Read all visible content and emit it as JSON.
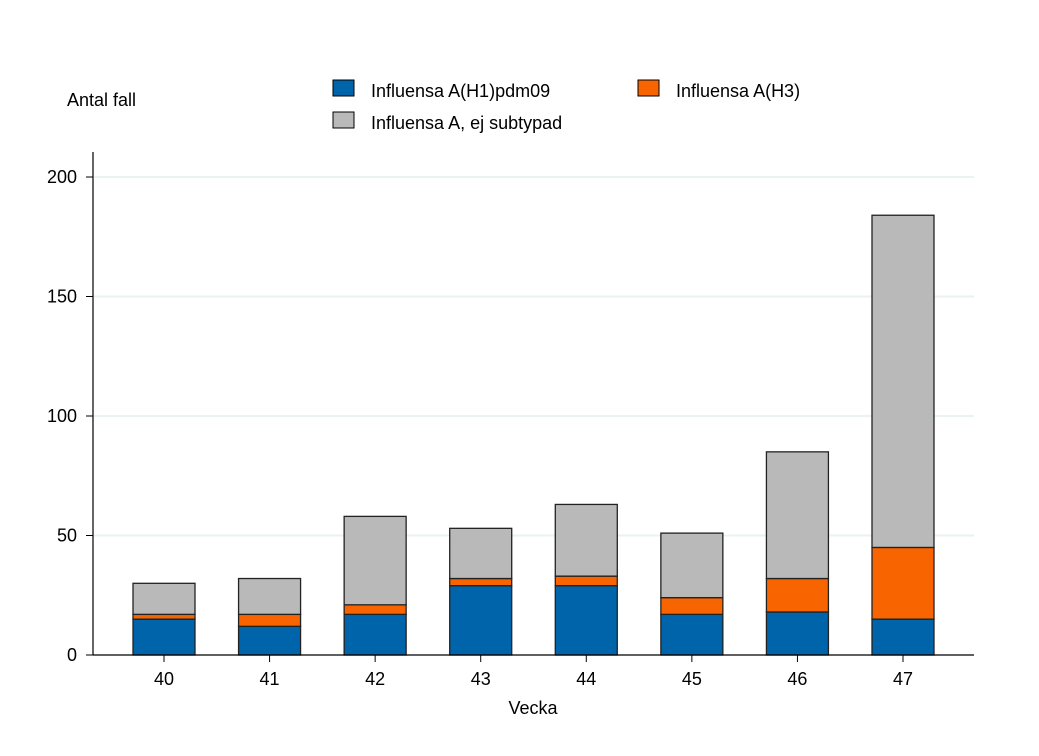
{
  "chart_data": {
    "type": "bar",
    "stacked": true,
    "ylabel": "Antal fall",
    "xlabel": "Vecka",
    "categories": [
      "40",
      "41",
      "42",
      "43",
      "44",
      "45",
      "46",
      "47"
    ],
    "ylim": [
      0,
      210
    ],
    "yticks": [
      0,
      50,
      100,
      150,
      200
    ],
    "grid": true,
    "legend_position": "top",
    "series": [
      {
        "name": "Influensa A(H1)pdm09",
        "color": "#0064AA",
        "values": [
          15,
          12,
          17,
          29,
          29,
          17,
          18,
          15
        ]
      },
      {
        "name": "Influensa A(H3)",
        "color": "#F86400",
        "values": [
          2,
          5,
          4,
          3,
          4,
          7,
          14,
          30
        ]
      },
      {
        "name": "Influensa A, ej subtypad",
        "color": "#B9B9B9",
        "values": [
          13,
          15,
          37,
          21,
          30,
          27,
          53,
          139
        ]
      }
    ]
  }
}
